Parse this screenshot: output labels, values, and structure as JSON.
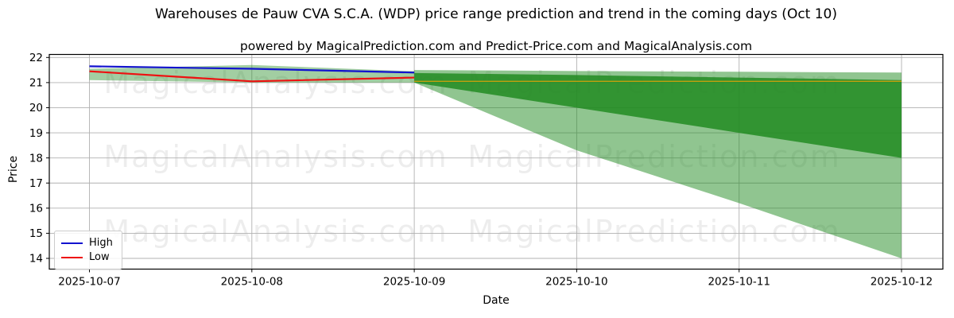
{
  "title": "Warehouses de Pauw CVA S.C.A. (WDP) price range prediction and trend in the coming days (Oct 10)",
  "subtitle": "powered by MagicalPrediction.com and Predict-Price.com and MagicalAnalysis.com",
  "watermark": {
    "left": "MagicalAnalysis.com",
    "right": "MagicalPrediction.com"
  },
  "axes": {
    "x_label": "Date",
    "y_label": "Price",
    "y_ticks": [
      22,
      21,
      20,
      19,
      18,
      17,
      16,
      15,
      14
    ],
    "x_ticks": [
      "2025-10-07",
      "2025-10-08",
      "2025-10-09",
      "2025-10-10",
      "2025-10-11",
      "2025-10-12"
    ],
    "ylim": [
      13.57,
      22.12
    ],
    "grid": true,
    "grid_color": "#b0b0b0",
    "spine_color": "#000000"
  },
  "legend": {
    "items": [
      {
        "label": "High",
        "color": "#1212cf"
      },
      {
        "label": "Low",
        "color": "#ee1111"
      }
    ]
  },
  "chart_data": {
    "type": "line",
    "title": "Warehouses de Pauw CVA S.C.A. (WDP) price range prediction and trend in the coming days (Oct 10)",
    "xlabel": "Date",
    "ylabel": "Price",
    "ylim": [
      13.57,
      22.12
    ],
    "x": [
      "2025-10-07",
      "2025-10-08",
      "2025-10-09",
      "2025-10-10",
      "2025-10-11",
      "2025-10-12"
    ],
    "series": [
      {
        "name": "High",
        "color": "#1212cf",
        "x": [
          "2025-10-07",
          "2025-10-08",
          "2025-10-09"
        ],
        "values": [
          21.65,
          21.55,
          21.4
        ]
      },
      {
        "name": "Low",
        "color": "#ee1111",
        "x": [
          "2025-10-07",
          "2025-10-08",
          "2025-10-09"
        ],
        "values": [
          21.45,
          21.05,
          21.2
        ]
      }
    ],
    "bands": [
      {
        "name": "history-range",
        "color": "rgba(34,139,34,0.42)",
        "x": [
          "2025-10-07",
          "2025-10-08",
          "2025-10-09"
        ],
        "top": [
          21.55,
          21.7,
          21.45
        ],
        "bottom": [
          21.1,
          21.0,
          21.0
        ]
      },
      {
        "name": "forecast-outer",
        "color": "rgba(34,139,34,0.5)",
        "x": [
          "2025-10-09",
          "2025-10-10",
          "2025-10-11",
          "2025-10-12"
        ],
        "top": [
          21.5,
          21.46,
          21.43,
          21.4
        ],
        "bottom": [
          21.0,
          18.3,
          16.2,
          14.0
        ]
      },
      {
        "name": "forecast-inner",
        "color": "rgba(34,139,34,0.85)",
        "x": [
          "2025-10-09",
          "2025-10-10",
          "2025-10-11",
          "2025-10-12"
        ],
        "top": [
          21.38,
          21.3,
          21.2,
          21.1
        ],
        "bottom": [
          21.0,
          20.0,
          19.0,
          18.0
        ]
      }
    ],
    "reference_line": {
      "value": 21.05,
      "color": "#ffa500",
      "opacity": 0.7,
      "x_start": "2025-10-09",
      "x_end": "2025-10-12"
    },
    "legend_position": "lower left"
  }
}
